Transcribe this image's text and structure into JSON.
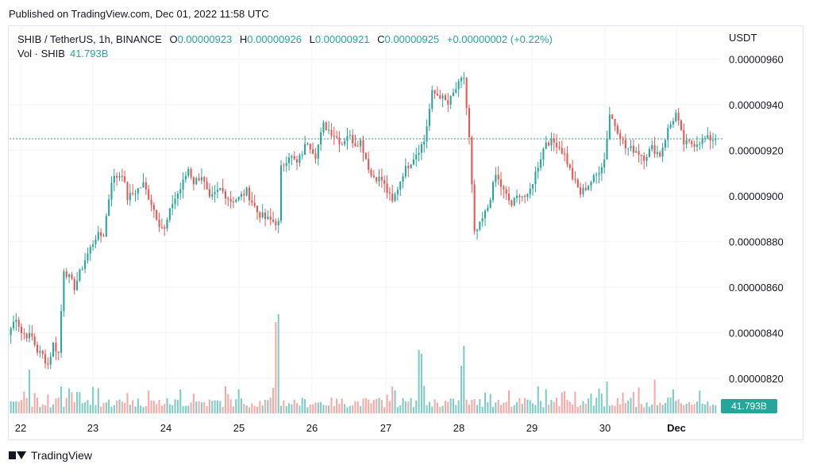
{
  "published": "Published on TradingView.com, Dec 01, 2022 11:58 UTC",
  "legend": {
    "symbol": "SHIB / TetherUS, 1h, BINANCE",
    "o_label": "O",
    "o": "0.00000923",
    "h_label": "H",
    "h": "0.00000926",
    "l_label": "L",
    "l": "0.00000921",
    "c_label": "C",
    "c": "0.00000925",
    "change": "+0.00000002 (+0.22%)",
    "vol_label": "Vol · SHIB",
    "vol": "41.793B"
  },
  "unit": "USDT",
  "footer": {
    "brand": "TradingView"
  },
  "colors": {
    "up": "#26a69a",
    "down": "#ef5350",
    "vol_up": "#80cbc4",
    "vol_down": "#f7a9a7",
    "grid": "#f0f3fa"
  },
  "chart_data": {
    "type": "candlestick",
    "interval": "1h",
    "ylim": [
      8.05e-06,
      9.65e-06
    ],
    "y_ticks": [
      "0.00000960",
      "0.00000940",
      "0.00000920",
      "0.00000900",
      "0.00000880",
      "0.00000860",
      "0.00000840",
      "0.00000820"
    ],
    "y_tick_values": [
      9.6e-06,
      9.4e-06,
      9.2e-06,
      9e-06,
      8.8e-06,
      8.6e-06,
      8.4e-06,
      8.2e-06
    ],
    "x_ticks": [
      "22",
      "23",
      "24",
      "25",
      "26",
      "27",
      "28",
      "29",
      "30",
      "Dec"
    ],
    "last_price": 9.25e-06,
    "volume_label": "41.793B",
    "anchors": [
      [
        0,
        8.42e-06
      ],
      [
        2,
        8.47e-06
      ],
      [
        4,
        8.4e-06
      ],
      [
        8,
        8.38e-06
      ],
      [
        10,
        8.32e-06
      ],
      [
        12,
        8.3e-06
      ],
      [
        14,
        8.26e-06
      ],
      [
        16,
        8.35e-06
      ],
      [
        18,
        8.31e-06
      ],
      [
        20,
        8.68e-06
      ],
      [
        24,
        8.6e-06
      ],
      [
        28,
        8.72e-06
      ],
      [
        32,
        8.82e-06
      ],
      [
        35,
        8.83e-06
      ],
      [
        38,
        9.07e-06
      ],
      [
        42,
        9.1e-06
      ],
      [
        44,
        8.99e-06
      ],
      [
        47,
        9.02e-06
      ],
      [
        50,
        9.05e-06
      ],
      [
        53,
        8.97e-06
      ],
      [
        56,
        8.88e-06
      ],
      [
        58,
        8.85e-06
      ],
      [
        61,
        8.97e-06
      ],
      [
        64,
        9.03e-06
      ],
      [
        67,
        9.12e-06
      ],
      [
        69,
        9.06e-06
      ],
      [
        72,
        9.09e-06
      ],
      [
        75,
        8.98e-06
      ],
      [
        79,
        9.03e-06
      ],
      [
        83,
        8.98e-06
      ],
      [
        86,
        8.99e-06
      ],
      [
        89,
        9.02e-06
      ],
      [
        93,
        8.93e-06
      ],
      [
        96,
        8.9e-06
      ],
      [
        101,
        8.88e-06
      ],
      [
        102,
        9.12e-06
      ],
      [
        105,
        9.18e-06
      ],
      [
        108,
        9.14e-06
      ],
      [
        112,
        9.24e-06
      ],
      [
        115,
        9.18e-06
      ],
      [
        118,
        9.31e-06
      ],
      [
        121,
        9.28e-06
      ],
      [
        125,
        9.23e-06
      ],
      [
        127,
        9.27e-06
      ],
      [
        130,
        9.23e-06
      ],
      [
        132,
        9.24e-06
      ],
      [
        136,
        9.09e-06
      ],
      [
        140,
        9.07e-06
      ],
      [
        144,
        8.97e-06
      ],
      [
        148,
        9.1e-06
      ],
      [
        152,
        9.17e-06
      ],
      [
        156,
        9.24e-06
      ],
      [
        159,
        9.45e-06
      ],
      [
        162,
        9.44e-06
      ],
      [
        165,
        9.4e-06
      ],
      [
        168,
        9.47e-06
      ],
      [
        171,
        9.52e-06
      ],
      [
        173,
        9.25e-06
      ],
      [
        175,
        8.83e-06
      ],
      [
        177,
        8.87e-06
      ],
      [
        180,
        8.95e-06
      ],
      [
        183,
        9.09e-06
      ],
      [
        186,
        9.02e-06
      ],
      [
        189,
        8.96e-06
      ],
      [
        192,
        9.01e-06
      ],
      [
        195,
        8.99e-06
      ],
      [
        198,
        9.1e-06
      ],
      [
        202,
        9.24e-06
      ],
      [
        206,
        9.23e-06
      ],
      [
        209,
        9.18e-06
      ],
      [
        212,
        9.08e-06
      ],
      [
        215,
        9.01e-06
      ],
      [
        218,
        9.05e-06
      ],
      [
        221,
        9.09e-06
      ],
      [
        224,
        9.16e-06
      ],
      [
        226,
        9.36e-06
      ],
      [
        229,
        9.29e-06
      ],
      [
        232,
        9.21e-06
      ],
      [
        236,
        9.2e-06
      ],
      [
        239,
        9.17e-06
      ],
      [
        242,
        9.21e-06
      ],
      [
        245,
        9.18e-06
      ],
      [
        248,
        9.29e-06
      ],
      [
        251,
        9.36e-06
      ],
      [
        254,
        9.23e-06
      ],
      [
        258,
        9.23e-06
      ],
      [
        262,
        9.25e-06
      ],
      [
        265,
        9.25e-06
      ]
    ],
    "volume_spikes": [
      [
        100,
        0.46
      ],
      [
        101,
        0.5
      ],
      [
        154,
        0.32
      ],
      [
        155,
        0.3
      ],
      [
        170,
        0.24
      ],
      [
        171,
        0.34
      ],
      [
        7,
        0.22
      ],
      [
        225,
        0.16
      ],
      [
        243,
        0.17
      ]
    ]
  }
}
